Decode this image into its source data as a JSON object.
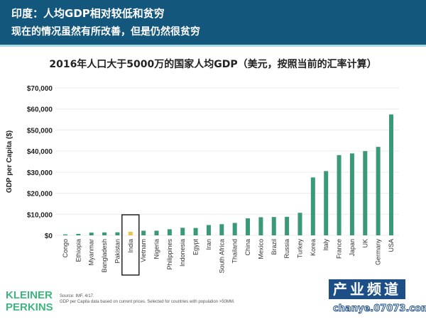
{
  "header": {
    "title": "印度：人均GDP相对较低和贫穷",
    "subtitle": "现在的情况虽然有所改善，但是仍然很贫穷"
  },
  "chart_data": {
    "type": "bar",
    "title": "2016年人口大于5000万的国家人均GDP（美元，按照当前的汇率计算）",
    "xlabel": "",
    "ylabel": "GDP per Capita ($)",
    "ylim": [
      0,
      70000
    ],
    "yticks": [
      "$0",
      "$10,000",
      "$20,000",
      "$30,000",
      "$40,000",
      "$50,000",
      "$60,000",
      "$70,000"
    ],
    "grid": true,
    "categories": [
      "Congo",
      "Ethiopia",
      "Myanmar",
      "Bangladesh",
      "Pakistan",
      "India",
      "Vietnam",
      "Nigeria",
      "Philippines",
      "Indonesia",
      "Egypt",
      "Iran",
      "South Africa",
      "Thailand",
      "China",
      "Mexico",
      "Brazil",
      "Russia",
      "Turkey",
      "Korea",
      "Italy",
      "France",
      "Japan",
      "UK",
      "Germany",
      "USA"
    ],
    "values": [
      450,
      700,
      1300,
      1400,
      1450,
      1700,
      2200,
      2200,
      2900,
      3600,
      3500,
      4900,
      5300,
      5900,
      8100,
      8600,
      8700,
      8800,
      10700,
      27500,
      30500,
      38100,
      38900,
      40000,
      42000,
      57400
    ],
    "highlight": "India",
    "colors": {
      "bar": "#3a9a78",
      "highlight": "#e9c74a",
      "grid": "#ececec"
    }
  },
  "footer": {
    "logo": "KLEINER PERKINS",
    "source": "Source: IMF, 4/17.",
    "note": "GDP per Capita data based on current prices. Selected for countries with population >50MM.",
    "watermark_cn": "产业频道",
    "watermark_url": "chanye.07073.com"
  }
}
